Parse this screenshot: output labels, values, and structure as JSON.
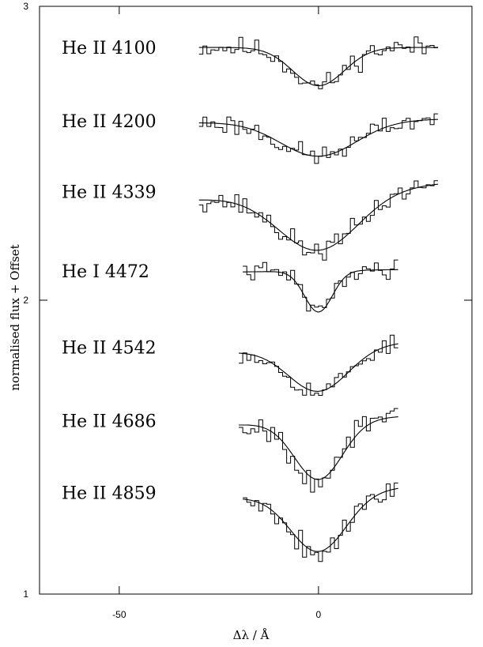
{
  "chart_data": {
    "type": "line",
    "title": "",
    "xlabel": "Δλ / Å",
    "ylabel": "normalised flux + Offset",
    "xlim": [
      -70,
      38.5
    ],
    "ylim": [
      1,
      3
    ],
    "xticks": [
      -50,
      0
    ],
    "yticks": [
      1,
      2,
      3
    ],
    "grid": false,
    "legend": "none",
    "line_style": {
      "observed": "histogram",
      "model": "smooth"
    },
    "series": [
      {
        "label": "He II 4100",
        "xrange": [
          -30,
          30
        ],
        "continuum": 2.86,
        "depth": 0.13,
        "width": 6.5,
        "slope": 0.0,
        "noise": 0.018,
        "seed": 11
      },
      {
        "label": "He II 4200",
        "xrange": [
          -30,
          30
        ],
        "continuum": 2.61,
        "depth": 0.12,
        "width": 9.5,
        "slope": 0.0002,
        "noise": 0.018,
        "seed": 23
      },
      {
        "label": "He II 4339",
        "xrange": [
          -30,
          30
        ],
        "continuum": 2.37,
        "depth": 0.2,
        "width": 10.0,
        "slope": 0.0009,
        "noise": 0.018,
        "seed": 37
      },
      {
        "label": "He I 4472",
        "xrange": [
          -19,
          20
        ],
        "continuum": 2.1,
        "depth": 0.14,
        "width": 3.5,
        "slope": 0.0002,
        "noise": 0.015,
        "seed": 41
      },
      {
        "label": "He II 4542",
        "xrange": [
          -20,
          20
        ],
        "continuum": 1.84,
        "depth": 0.15,
        "width": 7.5,
        "slope": 0.0008,
        "noise": 0.016,
        "seed": 53
      },
      {
        "label": "He II 4686",
        "xrange": [
          -20,
          20
        ],
        "continuum": 1.59,
        "depth": 0.2,
        "width": 6.0,
        "slope": 0.0007,
        "noise": 0.022,
        "seed": 67
      },
      {
        "label": "He II 4859",
        "xrange": [
          -19,
          20
        ],
        "continuum": 1.345,
        "depth": 0.2,
        "width": 7.0,
        "slope": 0.0009,
        "noise": 0.022,
        "seed": 79
      }
    ]
  }
}
